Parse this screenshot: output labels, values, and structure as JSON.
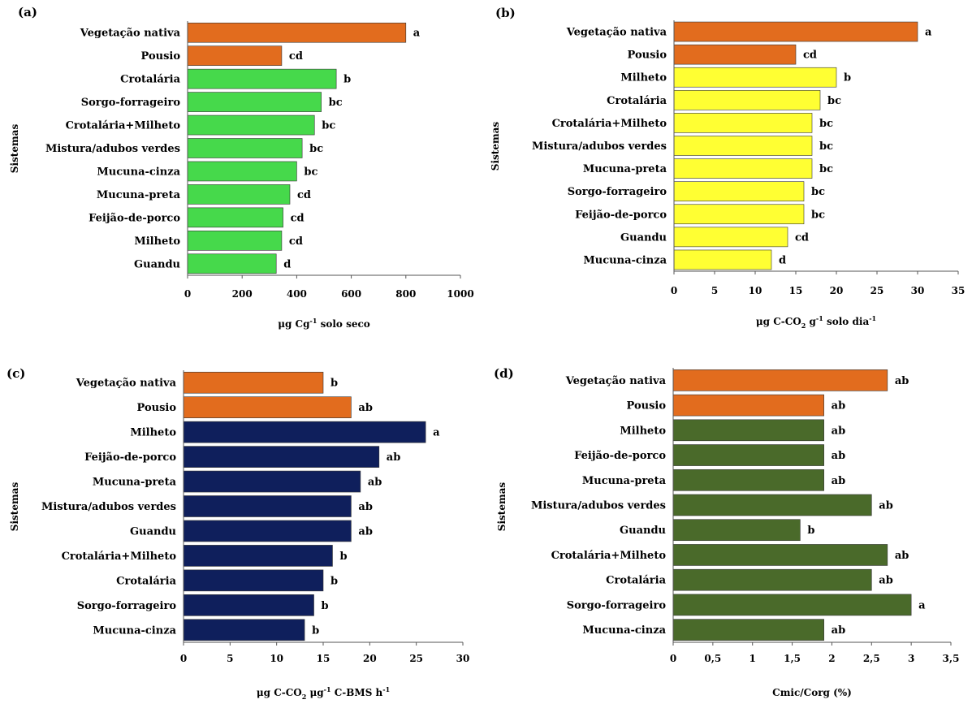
{
  "chart_data": [
    {
      "panel": "(a)",
      "type": "bar",
      "orientation": "horizontal",
      "ylabel": "Sistemas",
      "xlabel": "μg Cg",
      "xlabel_sup": "-1",
      "xlabel_rest": " solo seco",
      "xlim": [
        0,
        1000
      ],
      "xticks": [
        "0",
        "200",
        "400",
        "600",
        "800",
        "1000"
      ],
      "categories": [
        "Vegetação nativa",
        "Pousio",
        "Crotalária",
        "Sorgo-forrageiro",
        "Crotalária+Milheto",
        "Mistura/adubos verdes",
        "Mucuna-cinza",
        "Mucuna-preta",
        "Feijão-de-porco",
        "Milheto",
        "Guandu"
      ],
      "values": [
        800,
        345,
        545,
        490,
        465,
        420,
        400,
        375,
        350,
        345,
        325
      ],
      "letters": [
        "a",
        "cd",
        "b",
        "bc",
        "bc",
        "bc",
        "bc",
        "cd",
        "cd",
        "cd",
        "d"
      ],
      "colors": [
        "#e26c1e",
        "#e26c1e",
        "#46d94b",
        "#46d94b",
        "#46d94b",
        "#46d94b",
        "#46d94b",
        "#46d94b",
        "#46d94b",
        "#46d94b",
        "#46d94b"
      ]
    },
    {
      "panel": "(b)",
      "type": "bar",
      "orientation": "horizontal",
      "ylabel": "Sistemas",
      "xlabel": "μg C-CO",
      "xlabel_sub": "2",
      "xlabel_mid": " g",
      "xlabel_sup": "-1",
      "xlabel_rest": " solo dia",
      "xlabel_sup2": "-1",
      "xlim": [
        0,
        35
      ],
      "xticks": [
        "0",
        "5",
        "10",
        "15",
        "20",
        "25",
        "30",
        "35"
      ],
      "categories": [
        "Vegetação nativa",
        "Pousio",
        "Milheto",
        "Crotalária",
        "Crotalária+Milheto",
        "Mistura/adubos verdes",
        "Mucuna-preta",
        "Sorgo-forrageiro",
        "Feijão-de-porco",
        "Guandu",
        "Mucuna-cinza"
      ],
      "values": [
        30,
        15,
        20,
        18,
        17,
        17,
        17,
        16,
        16,
        14,
        12
      ],
      "letters": [
        "a",
        "cd",
        "b",
        "bc",
        "bc",
        "bc",
        "bc",
        "bc",
        "bc",
        "cd",
        "d"
      ],
      "colors": [
        "#e26c1e",
        "#e26c1e",
        "#ffff33",
        "#ffff33",
        "#ffff33",
        "#ffff33",
        "#ffff33",
        "#ffff33",
        "#ffff33",
        "#ffff33",
        "#ffff33"
      ]
    },
    {
      "panel": "(c)",
      "type": "bar",
      "orientation": "horizontal",
      "ylabel": "Sistemas",
      "xlabel": "μg C-CO",
      "xlabel_sub": "2",
      "xlabel_mid": " μg",
      "xlabel_sup": "-1",
      "xlabel_rest": " C-BMS h",
      "xlabel_sup2": "-1",
      "xlim": [
        0,
        30
      ],
      "xticks": [
        "0",
        "5",
        "10",
        "15",
        "20",
        "25",
        "30"
      ],
      "categories": [
        "Vegetação nativa",
        "Pousio",
        "Milheto",
        "Feijão-de-porco",
        "Mucuna-preta",
        "Mistura/adubos verdes",
        "Guandu",
        "Crotalária+Milheto",
        "Crotalária",
        "Sorgo-forrageiro",
        "Mucuna-cinza"
      ],
      "values": [
        15,
        18,
        26,
        21,
        19,
        18,
        18,
        16,
        15,
        14,
        13
      ],
      "letters": [
        "b",
        "ab",
        "a",
        "ab",
        "ab",
        "ab",
        "ab",
        "b",
        "b",
        "b",
        "b"
      ],
      "colors": [
        "#e26c1e",
        "#e26c1e",
        "#0f1f5c",
        "#0f1f5c",
        "#0f1f5c",
        "#0f1f5c",
        "#0f1f5c",
        "#0f1f5c",
        "#0f1f5c",
        "#0f1f5c",
        "#0f1f5c"
      ]
    },
    {
      "panel": "(d)",
      "type": "bar",
      "orientation": "horizontal",
      "ylabel": "Sistemas",
      "xlabel": "Cmic/Corg (%)",
      "xlim": [
        0,
        3.5
      ],
      "xticks": [
        "0",
        "0,5",
        "1",
        "1,5",
        "2",
        "2,5",
        "3",
        "3,5"
      ],
      "categories": [
        "Vegetação nativa",
        "Pousio",
        "Milheto",
        "Feijão-de-porco",
        "Mucuna-preta",
        "Mistura/adubos verdes",
        "Guandu",
        "Crotalária+Milheto",
        "Crotalária",
        "Sorgo-forrageiro",
        "Mucuna-cinza"
      ],
      "values": [
        2.7,
        1.9,
        1.9,
        1.9,
        1.9,
        2.5,
        1.6,
        2.7,
        2.5,
        3.0,
        1.9
      ],
      "letters": [
        "ab",
        "ab",
        "ab",
        "ab",
        "ab",
        "ab",
        "b",
        "ab",
        "ab",
        "a",
        "ab"
      ],
      "colors": [
        "#e26c1e",
        "#e26c1e",
        "#4a6a2a",
        "#4a6a2a",
        "#4a6a2a",
        "#4a6a2a",
        "#4a6a2a",
        "#4a6a2a",
        "#4a6a2a",
        "#4a6a2a",
        "#4a6a2a"
      ]
    }
  ]
}
